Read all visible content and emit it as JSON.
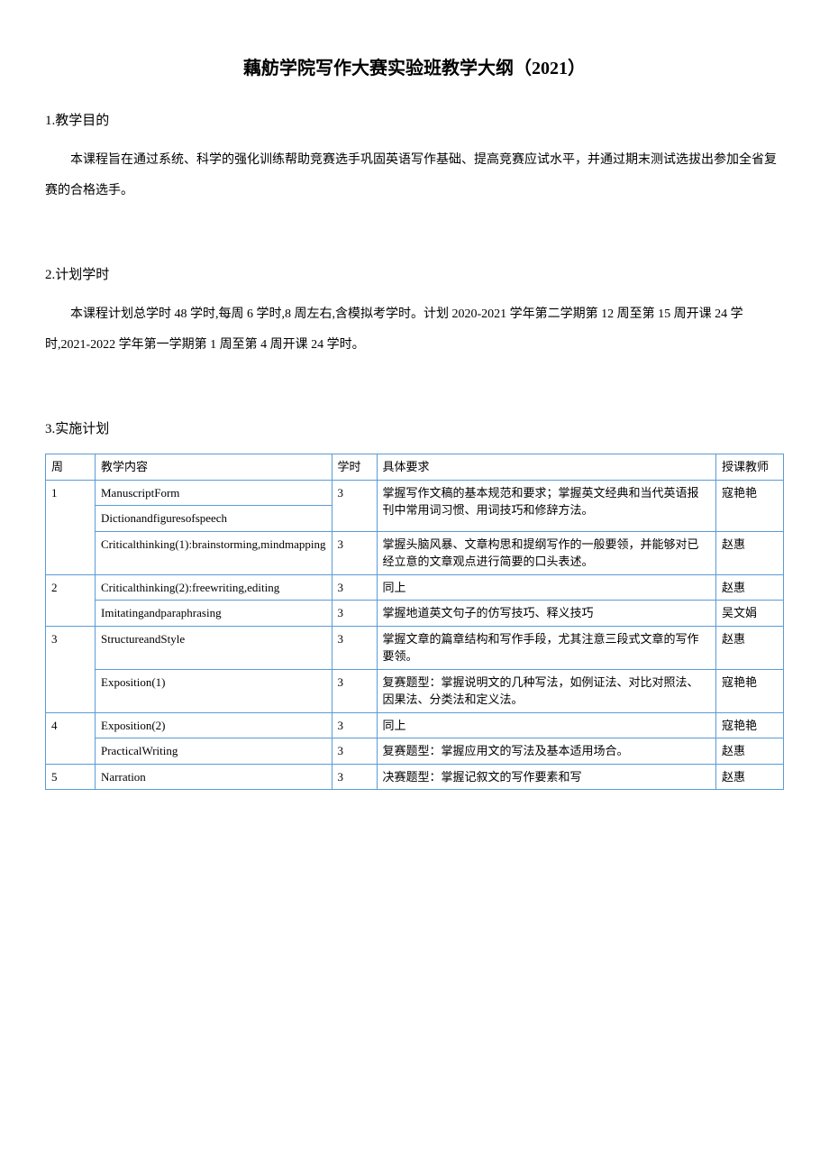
{
  "title": "藕舫学院写作大赛实验班教学大纲（2021）",
  "sections": {
    "purpose": {
      "heading": "1.教学目的",
      "text": "本课程旨在通过系统、科学的强化训练帮助竞赛选手巩固英语写作基础、提高竞赛应试水平，并通过期末测试选拔出参加全省复赛的合格选手。"
    },
    "hours": {
      "heading": "2.计划学时",
      "text": "本课程计划总学时 48 学时,每周 6 学时,8 周左右,含模拟考学时。计划 2020-2021 学年第二学期第 12 周至第 15 周开课 24 学时,2021-2022 学年第一学期第 1 周至第 4 周开课 24 学时。"
    },
    "plan": {
      "heading": "3.实施计划"
    }
  },
  "table": {
    "headers": {
      "week": "周",
      "content": "教学内容",
      "hours": "学时",
      "requirements": "具体要求",
      "teacher": "授课教师"
    },
    "rows": [
      {
        "week": "1",
        "content_a": "ManuscriptForm",
        "content_b": "Dictionandfiguresofspeech",
        "hours_a": "3",
        "requirements_a": "掌握写作文稿的基本规范和要求；掌握英文经典和当代英语报刊中常用词习惯、用词技巧和修辞方法。",
        "teacher_a": "寇艳艳",
        "content_c": "Criticalthinking(1):brainstorming,mindmapping",
        "hours_c": "3",
        "requirements_c": "掌握头脑风暴、文章构思和提纲写作的一般要领，并能够对已经立意的文章观点进行简要的口头表述。",
        "teacher_c": "赵惠"
      },
      {
        "week": "2",
        "content_a": "Criticalthinking(2):freewriting,editing",
        "hours_a": "3",
        "requirements_a": "同上",
        "teacher_a": "赵惠",
        "content_b": "Imitatingandparaphrasing",
        "hours_b": "3",
        "requirements_b": "掌握地道英文句子的仿写技巧、释义技巧",
        "teacher_b": "吴文娟"
      },
      {
        "week": "3",
        "content_a": "StructureandStyle",
        "hours_a": "3",
        "requirements_a": "掌握文章的篇章结构和写作手段，尤其注意三段式文章的写作要领。",
        "teacher_a": "赵惠",
        "content_b": "Exposition(1)",
        "hours_b": "3",
        "requirements_b": "复赛题型：掌握说明文的几种写法，如例证法、对比对照法、因果法、分类法和定义法。",
        "teacher_b": "寇艳艳"
      },
      {
        "week": "4",
        "content_a": "Exposition(2)",
        "hours_a": "3",
        "requirements_a": "同上",
        "teacher_a": "寇艳艳",
        "content_b": "PracticalWriting",
        "hours_b": "3",
        "requirements_b": "复赛题型：掌握应用文的写法及基本适用场合。",
        "teacher_b": "赵惠"
      },
      {
        "week": "5",
        "content_a": "Narration",
        "hours_a": "3",
        "requirements_a": "决赛题型：掌握记叙文的写作要素和写",
        "teacher_a": "赵惠"
      }
    ]
  }
}
